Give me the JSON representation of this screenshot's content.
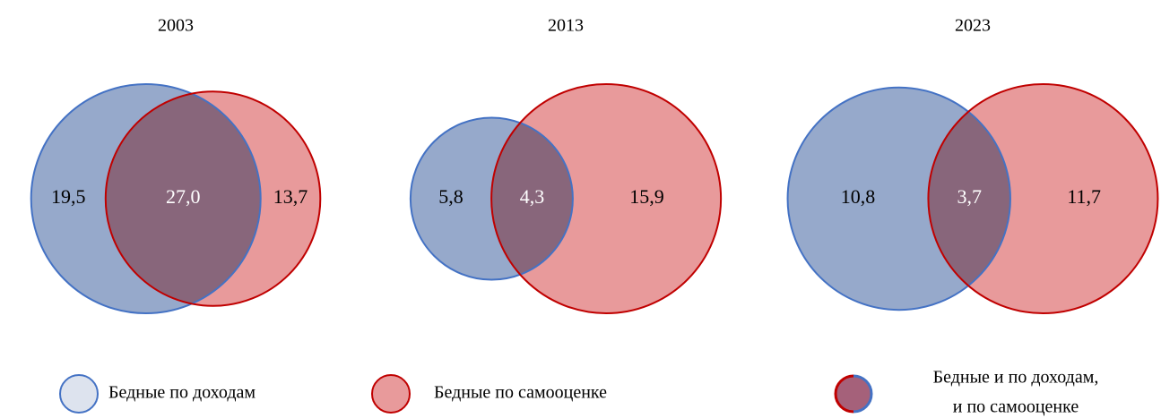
{
  "chart_data": [
    {
      "type": "venn",
      "title": "2003",
      "values": [
        19.5,
        27.0,
        13.7
      ],
      "value_labels": [
        "19,5",
        "27,0",
        "13,7"
      ]
    },
    {
      "type": "venn",
      "title": "2013",
      "values": [
        5.8,
        4.3,
        15.9
      ],
      "value_labels": [
        "5,8",
        "4,3",
        "15,9"
      ]
    },
    {
      "type": "venn",
      "title": "2023",
      "values": [
        10.8,
        3.7,
        11.7
      ],
      "value_labels": [
        "10,8",
        "3,7",
        "11,7"
      ]
    }
  ],
  "legend": [
    {
      "label": "Бедные по доходам",
      "color": "#4472c4",
      "fill": "#96a9cb"
    },
    {
      "label": "Бедные по самооценке",
      "color": "#c00000",
      "fill": "#e89a9b"
    },
    {
      "label": [
        "Бедные и по доходам,",
        "и по самооценке"
      ],
      "fill": "#a5617a"
    }
  ]
}
